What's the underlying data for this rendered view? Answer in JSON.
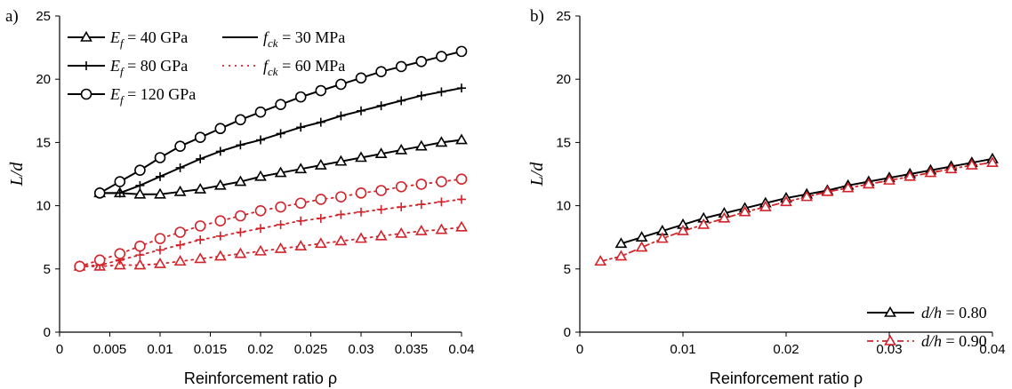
{
  "chart_data": [
    {
      "panel_label": "a)",
      "type": "line",
      "xlabel": "Reinforcement ratio ρ",
      "ylabel": "L/d",
      "xlim": [
        0,
        0.04
      ],
      "ylim": [
        0,
        25
      ],
      "xticks": [
        "0",
        "0.005",
        "0.01",
        "0.015",
        "0.02",
        "0.025",
        "0.03",
        "0.035",
        "0.04"
      ],
      "yticks": [
        "0",
        "5",
        "10",
        "15",
        "20",
        "25"
      ],
      "grid": false,
      "legend_position": "top-left",
      "legend": [
        {
          "var": "E",
          "sub": "f",
          "rest": " = 40 GPa",
          "marker": "triangle",
          "style": "solid",
          "color": "#000000"
        },
        {
          "var": "E",
          "sub": "f",
          "rest": " = 80 GPa",
          "marker": "plus",
          "style": "solid",
          "color": "#000000"
        },
        {
          "var": "E",
          "sub": "f",
          "rest": " = 120 GPa",
          "marker": "circle",
          "style": "solid",
          "color": "#000000"
        },
        {
          "var": "f",
          "sub": "ck",
          "rest": " = 30 MPa",
          "marker": "none",
          "style": "solid",
          "color": "#000000"
        },
        {
          "var": "f",
          "sub": "ck",
          "rest": " = 60 MPa",
          "marker": "none",
          "style": "dotted",
          "color": "#d2232a"
        }
      ],
      "series": [
        {
          "marker": "triangle",
          "style": "solid",
          "color": "#000000",
          "x": [
            0.004,
            0.006,
            0.008,
            0.01,
            0.012,
            0.014,
            0.016,
            0.018,
            0.02,
            0.022,
            0.024,
            0.026,
            0.028,
            0.03,
            0.032,
            0.034,
            0.036,
            0.038,
            0.04
          ],
          "y": [
            11.0,
            11.0,
            10.9,
            10.9,
            11.1,
            11.3,
            11.6,
            11.9,
            12.3,
            12.6,
            12.9,
            13.2,
            13.5,
            13.8,
            14.1,
            14.4,
            14.7,
            15.0,
            15.2
          ]
        },
        {
          "marker": "plus",
          "style": "solid",
          "color": "#000000",
          "x": [
            0.004,
            0.006,
            0.008,
            0.01,
            0.012,
            0.014,
            0.016,
            0.018,
            0.02,
            0.022,
            0.024,
            0.026,
            0.028,
            0.03,
            0.032,
            0.034,
            0.036,
            0.038,
            0.04
          ],
          "y": [
            11.0,
            11.0,
            11.6,
            12.3,
            13.0,
            13.7,
            14.3,
            14.8,
            15.2,
            15.7,
            16.2,
            16.6,
            17.1,
            17.5,
            17.9,
            18.3,
            18.7,
            19.0,
            19.3
          ]
        },
        {
          "marker": "circle",
          "style": "solid",
          "color": "#000000",
          "x": [
            0.004,
            0.006,
            0.008,
            0.01,
            0.012,
            0.014,
            0.016,
            0.018,
            0.02,
            0.022,
            0.024,
            0.026,
            0.028,
            0.03,
            0.032,
            0.034,
            0.036,
            0.038,
            0.04
          ],
          "y": [
            11.0,
            11.9,
            12.8,
            13.8,
            14.7,
            15.4,
            16.1,
            16.8,
            17.4,
            18.0,
            18.6,
            19.1,
            19.6,
            20.1,
            20.6,
            21.0,
            21.4,
            21.8,
            22.2
          ]
        },
        {
          "marker": "triangle",
          "style": "dotted",
          "color": "#d2232a",
          "x": [
            0.002,
            0.004,
            0.006,
            0.008,
            0.01,
            0.012,
            0.014,
            0.016,
            0.018,
            0.02,
            0.022,
            0.024,
            0.026,
            0.028,
            0.03,
            0.032,
            0.034,
            0.036,
            0.038,
            0.04
          ],
          "y": [
            5.2,
            5.2,
            5.3,
            5.3,
            5.4,
            5.6,
            5.8,
            6.0,
            6.2,
            6.4,
            6.6,
            6.8,
            7.0,
            7.2,
            7.4,
            7.6,
            7.8,
            8.0,
            8.1,
            8.3
          ]
        },
        {
          "marker": "plus",
          "style": "dotted",
          "color": "#d2232a",
          "x": [
            0.002,
            0.004,
            0.006,
            0.008,
            0.01,
            0.012,
            0.014,
            0.016,
            0.018,
            0.02,
            0.022,
            0.024,
            0.026,
            0.028,
            0.03,
            0.032,
            0.034,
            0.036,
            0.038,
            0.04
          ],
          "y": [
            5.2,
            5.3,
            5.7,
            6.1,
            6.5,
            6.9,
            7.3,
            7.6,
            7.9,
            8.2,
            8.5,
            8.8,
            9.0,
            9.3,
            9.5,
            9.7,
            9.9,
            10.1,
            10.3,
            10.5
          ]
        },
        {
          "marker": "circle",
          "style": "dotted",
          "color": "#d2232a",
          "x": [
            0.002,
            0.004,
            0.006,
            0.008,
            0.01,
            0.012,
            0.014,
            0.016,
            0.018,
            0.02,
            0.022,
            0.024,
            0.026,
            0.028,
            0.03,
            0.032,
            0.034,
            0.036,
            0.038,
            0.04
          ],
          "y": [
            5.2,
            5.7,
            6.2,
            6.8,
            7.4,
            7.9,
            8.4,
            8.8,
            9.2,
            9.6,
            9.9,
            10.2,
            10.5,
            10.7,
            11.0,
            11.2,
            11.5,
            11.7,
            11.9,
            12.1
          ]
        }
      ]
    },
    {
      "panel_label": "b)",
      "type": "line",
      "xlabel": "Reinforcement ratio ρ",
      "ylabel": "L/d",
      "xlim": [
        0,
        0.04
      ],
      "ylim": [
        0,
        25
      ],
      "xticks": [
        "0",
        "0.01",
        "0.02",
        "0.03",
        "0.04"
      ],
      "yticks": [
        "0",
        "5",
        "10",
        "15",
        "20",
        "25"
      ],
      "grid": false,
      "legend_position": "bottom-right",
      "legend": [
        {
          "var": "d/h",
          "sub": "",
          "rest": " = 0.80",
          "marker": "triangle",
          "style": "solid",
          "color": "#000000"
        },
        {
          "var": "d/h",
          "sub": "",
          "rest": " = 0.90",
          "marker": "triangle",
          "style": "dashdot",
          "color": "#d2232a"
        }
      ],
      "series": [
        {
          "marker": "triangle",
          "style": "solid",
          "color": "#000000",
          "x": [
            0.004,
            0.006,
            0.008,
            0.01,
            0.012,
            0.014,
            0.016,
            0.018,
            0.02,
            0.022,
            0.024,
            0.026,
            0.028,
            0.03,
            0.032,
            0.034,
            0.036,
            0.038,
            0.04
          ],
          "y": [
            7.0,
            7.5,
            8.0,
            8.5,
            9.0,
            9.4,
            9.8,
            10.2,
            10.6,
            10.9,
            11.2,
            11.6,
            11.9,
            12.2,
            12.5,
            12.8,
            13.1,
            13.4,
            13.7
          ]
        },
        {
          "marker": "triangle",
          "style": "dashdot",
          "color": "#d2232a",
          "x": [
            0.002,
            0.004,
            0.006,
            0.008,
            0.01,
            0.012,
            0.014,
            0.016,
            0.018,
            0.02,
            0.022,
            0.024,
            0.026,
            0.028,
            0.03,
            0.032,
            0.034,
            0.036,
            0.038,
            0.04
          ],
          "y": [
            5.6,
            6.0,
            6.7,
            7.4,
            8.0,
            8.5,
            9.0,
            9.5,
            9.9,
            10.3,
            10.7,
            11.1,
            11.4,
            11.7,
            12.0,
            12.3,
            12.6,
            12.9,
            13.2,
            13.4
          ]
        }
      ]
    }
  ]
}
